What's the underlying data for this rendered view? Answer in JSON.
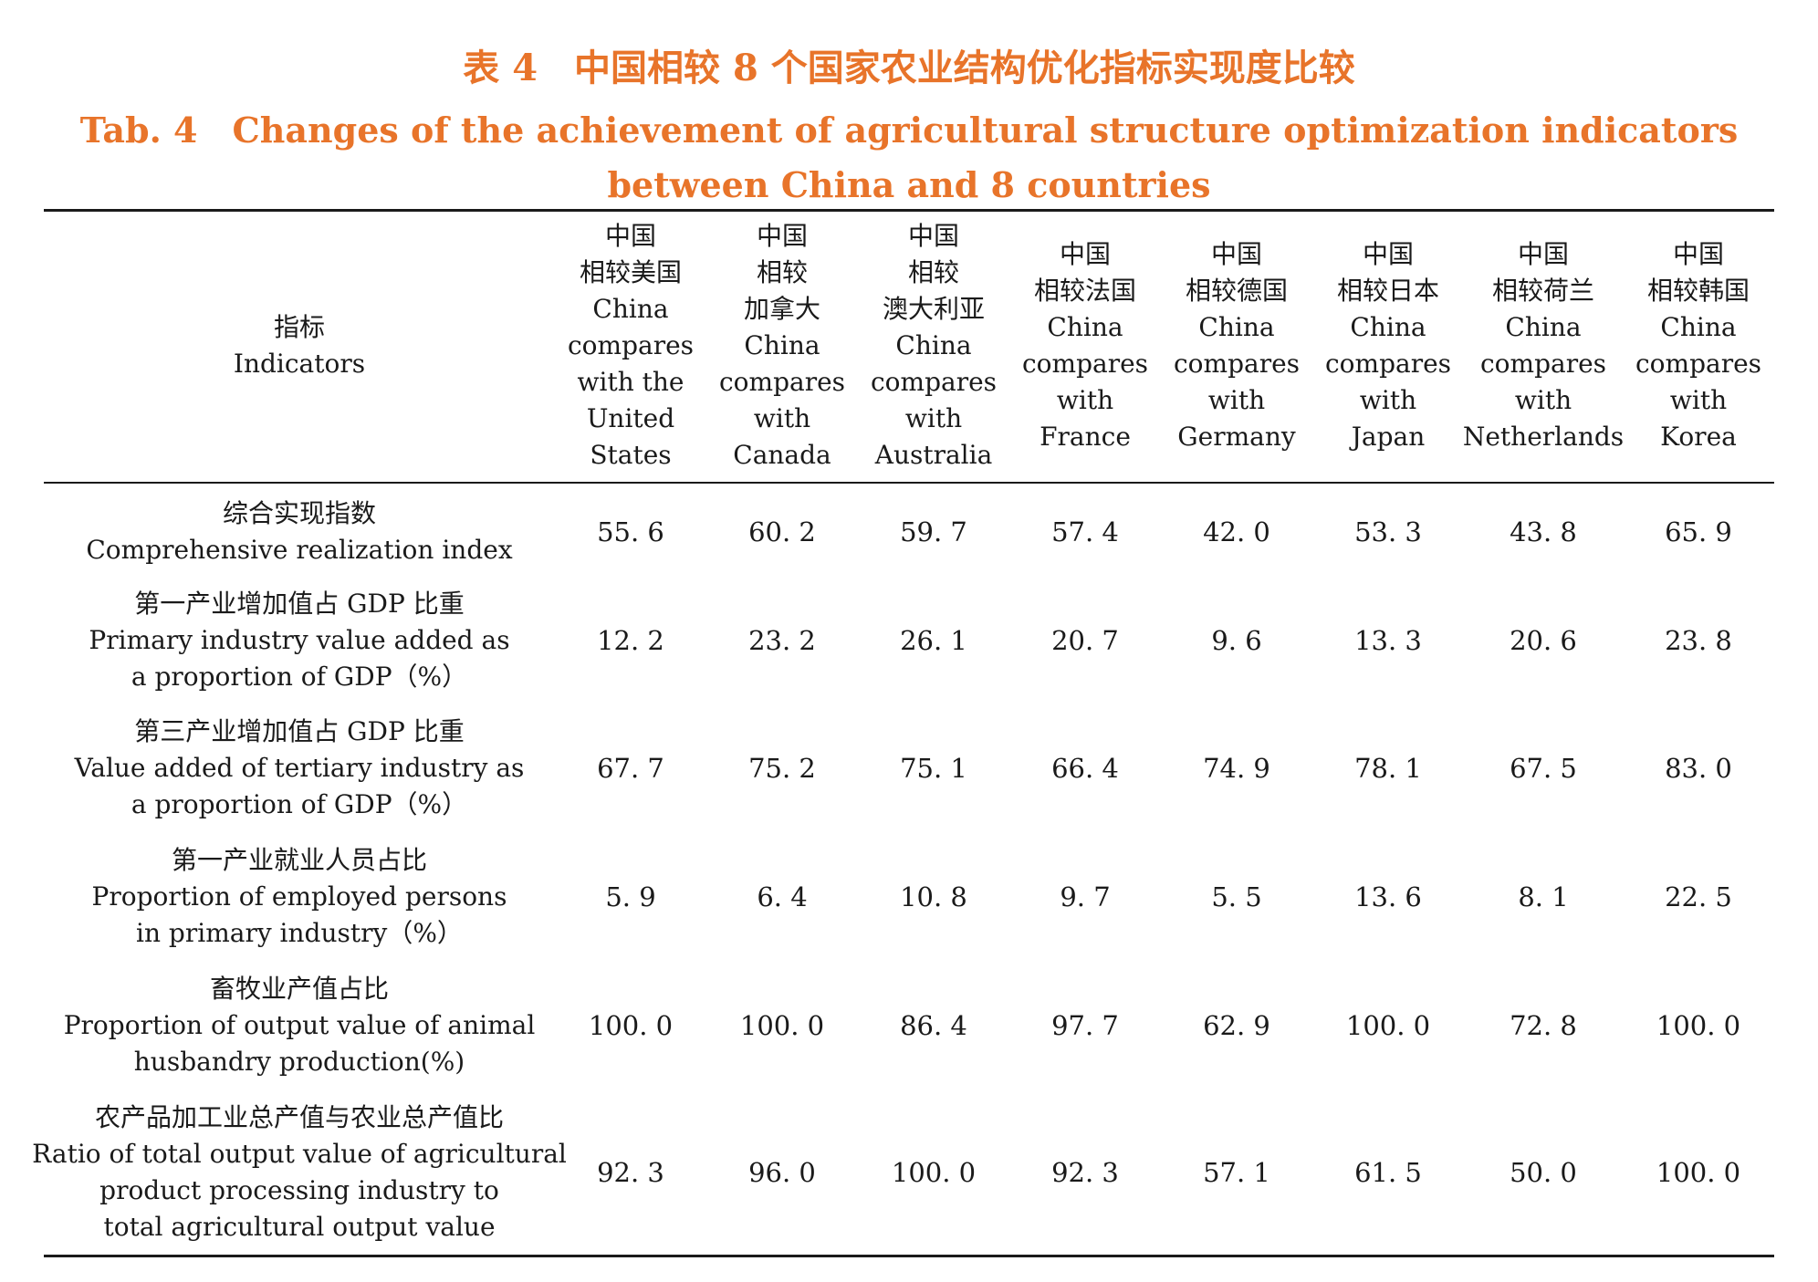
{
  "caption": {
    "zh": "表 4　中国相较 8 个国家农业结构优化指标实现度比较",
    "en_line1": "Tab. 4　Changes of the achievement of agricultural structure optimization indicators",
    "en_line2": "between China and 8 countries"
  },
  "header": {
    "indicator": [
      "指标",
      "Indicators"
    ],
    "columns": [
      [
        "中国",
        "相较美国",
        "China",
        "compares",
        "with the",
        "United",
        "States"
      ],
      [
        "中国",
        "相较",
        "加拿大",
        "China",
        "compares",
        "with",
        "Canada"
      ],
      [
        "中国",
        "相较",
        "澳大利亚",
        "China",
        "compares",
        "with",
        "Australia"
      ],
      [
        "中国",
        "相较法国",
        "China",
        "compares",
        "with",
        "France"
      ],
      [
        "中国",
        "相较德国",
        "China",
        "compares",
        "with",
        "Germany"
      ],
      [
        "中国",
        "相较日本",
        "China",
        "compares",
        "with",
        "Japan"
      ],
      [
        "中国",
        "相较荷兰",
        "China",
        "compares",
        "with",
        "Netherlands"
      ],
      [
        "中国",
        "相较韩国",
        "China",
        "compares",
        "with",
        "Korea"
      ]
    ]
  },
  "rows": [
    {
      "label": [
        "综合实现指数",
        "Comprehensive realization index"
      ],
      "values": [
        "55. 6",
        "60. 2",
        "59. 7",
        "57. 4",
        "42. 0",
        "53. 3",
        "43. 8",
        "65. 9"
      ]
    },
    {
      "label": [
        "第一产业增加值占 GDP 比重",
        "Primary industry value added as",
        "a proportion of GDP（%）"
      ],
      "values": [
        "12. 2",
        "23. 2",
        "26. 1",
        "20. 7",
        "9. 6",
        "13. 3",
        "20. 6",
        "23. 8"
      ]
    },
    {
      "label": [
        "第三产业增加值占 GDP 比重",
        "Value added of tertiary industry as",
        "a proportion of GDP（%）"
      ],
      "values": [
        "67. 7",
        "75. 2",
        "75. 1",
        "66. 4",
        "74. 9",
        "78. 1",
        "67. 5",
        "83. 0"
      ]
    },
    {
      "label": [
        "第一产业就业人员占比",
        "Proportion of employed persons",
        "in primary industry（%）"
      ],
      "values": [
        "5. 9",
        "6. 4",
        "10. 8",
        "9. 7",
        "5. 5",
        "13. 6",
        "8. 1",
        "22. 5"
      ]
    },
    {
      "label": [
        "畜牧业产值占比",
        "Proportion of output value of animal",
        "husbandry production(%)"
      ],
      "values": [
        "100. 0",
        "100. 0",
        "86. 4",
        "97. 7",
        "62. 9",
        "100. 0",
        "72. 8",
        "100. 0"
      ]
    },
    {
      "label": [
        "农产品加工业总产值与农业总产值比",
        "Ratio of total output value of agricultural",
        "product processing industry to",
        "total agricultural output value"
      ],
      "values": [
        "92. 3",
        "96. 0",
        "100. 0",
        "92. 3",
        "57. 1",
        "61. 5",
        "50. 0",
        "100. 0"
      ]
    }
  ]
}
